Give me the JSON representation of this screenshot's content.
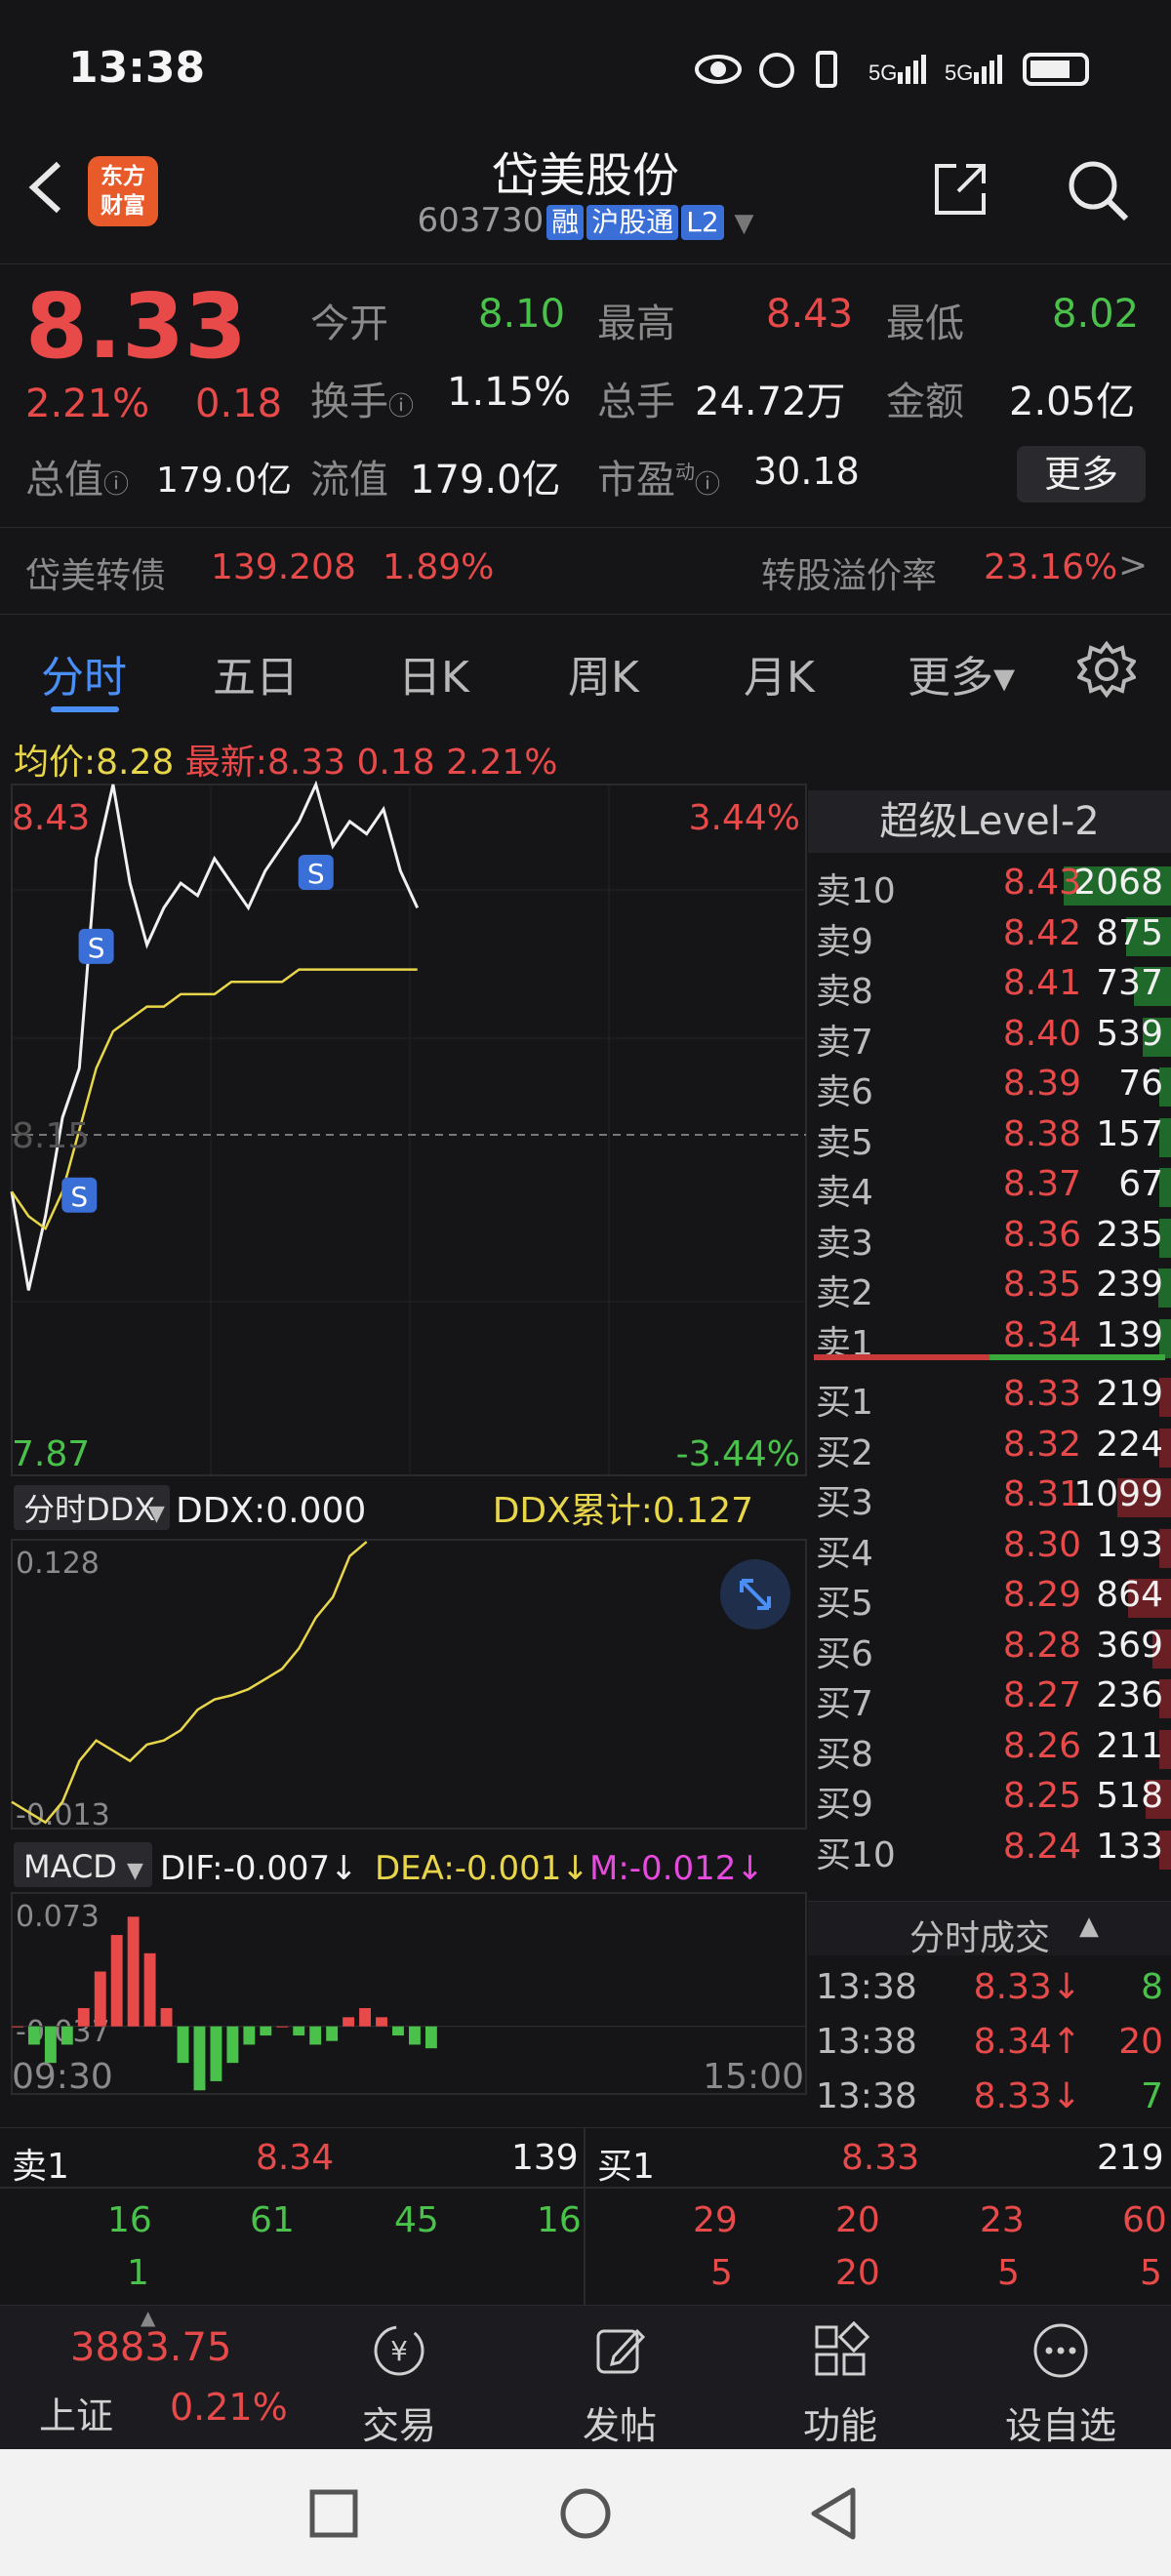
{
  "status": {
    "time": "13:38",
    "icons": "👁 ⏰ 📳 5G 5G 🔋"
  },
  "header": {
    "logo": "东方\n财富",
    "logo_line1": "东方",
    "logo_line2": "财富",
    "name": "岱美股份",
    "code": "603730",
    "tags": [
      "融",
      "沪股通",
      "L2"
    ]
  },
  "quote": {
    "price": "8.33",
    "change_pct": "2.21%",
    "change": "0.18",
    "open_label": "今开",
    "open": "8.10",
    "high_label": "最高",
    "high": "8.43",
    "low_label": "最低",
    "low": "8.02",
    "turnover_label": "换手",
    "turnover": "1.15%",
    "volume_label": "总手",
    "volume": "24.72万",
    "amount_label": "金额",
    "amount": "2.05亿",
    "mktcap_label": "总值",
    "mktcap": "179.0亿",
    "float_label": "流值",
    "float": "179.0亿",
    "pe_label": "市盈",
    "pe_sup": "动",
    "pe": "30.18",
    "more": "更多"
  },
  "convertible": {
    "name": "岱美转债",
    "price": "139.208",
    "pct": "1.89%",
    "premium_label": "转股溢价率",
    "premium": "23.16%",
    "arrow": ">"
  },
  "tabs": [
    "分时",
    "五日",
    "日K",
    "周K",
    "月K",
    "更多▾"
  ],
  "avg": {
    "label": "均价:",
    "value": "8.28",
    "latest_label": "最新:",
    "latest": "8.33",
    "chg": "0.18",
    "pct": "2.21%"
  },
  "chart_data": [
    {
      "type": "line",
      "title": "",
      "x_start": "09:30",
      "x_end": "15:00",
      "ylim": [
        7.87,
        8.43
      ],
      "y_top_label": "8.43",
      "y_bottom_label": "7.87",
      "y_mid_label": "8.15",
      "pct_top_label": "3.44%",
      "pct_bottom_label": "-3.44%",
      "series": [
        {
          "values": [
            8.1,
            8.02,
            8.08,
            8.16,
            8.2,
            8.37,
            8.43,
            8.35,
            8.3,
            8.33,
            8.35,
            8.34,
            8.37,
            8.35,
            8.33,
            8.36,
            8.38,
            8.4,
            8.43,
            8.38,
            8.4,
            8.39,
            8.41,
            8.36,
            8.33
          ]
        },
        {
          "values": [
            8.1,
            8.08,
            8.07,
            8.1,
            8.15,
            8.2,
            8.23,
            8.24,
            8.25,
            8.25,
            8.26,
            8.26,
            8.26,
            8.27,
            8.27,
            8.27,
            8.27,
            8.28,
            8.28,
            8.28,
            8.28,
            8.28,
            8.28,
            8.28,
            8.28
          ]
        }
      ],
      "markers": [
        "S",
        "S",
        "S"
      ]
    },
    {
      "type": "line",
      "title": "分时DDX",
      "ddx_label": "DDX:0.000",
      "ddx_cum_label": "DDX累计:0.127",
      "ylim": [
        -0.013,
        0.128
      ],
      "y_top_label": "0.128",
      "y_bottom_label": "-0.013",
      "series": [
        {
          "values": [
            0.0,
            -0.005,
            -0.01,
            0.0,
            0.02,
            0.03,
            0.025,
            0.02,
            0.028,
            0.03,
            0.035,
            0.045,
            0.05,
            0.052,
            0.055,
            0.06,
            0.065,
            0.075,
            0.09,
            0.1,
            0.12,
            0.127
          ]
        }
      ]
    },
    {
      "type": "bar",
      "title": "MACD",
      "dif_label": "DIF:-0.007↓",
      "dea_label": "DEA:-0.001↓",
      "m_label": "M:-0.012↓",
      "ylim": [
        -0.037,
        0.073
      ],
      "y_top_label": "0.073",
      "y_bottom_label": "-0.037",
      "values": [
        0.0,
        -0.01,
        -0.02,
        -0.01,
        0.01,
        0.03,
        0.05,
        0.06,
        0.04,
        0.01,
        -0.02,
        -0.035,
        -0.03,
        -0.02,
        -0.01,
        -0.005,
        0.0,
        -0.005,
        -0.01,
        -0.008,
        0.005,
        0.01,
        0.005,
        -0.005,
        -0.01,
        -0.012
      ]
    }
  ],
  "book": {
    "title": "超级Level-2",
    "sells": [
      {
        "label": "卖10",
        "price": "8.43",
        "vol": "2068",
        "frac": 1.0
      },
      {
        "label": "卖9",
        "price": "8.42",
        "vol": "875",
        "frac": 0.42
      },
      {
        "label": "卖8",
        "price": "8.41",
        "vol": "737",
        "frac": 0.35
      },
      {
        "label": "卖7",
        "price": "8.40",
        "vol": "539",
        "frac": 0.26
      },
      {
        "label": "卖6",
        "price": "8.39",
        "vol": "76",
        "frac": 0.04
      },
      {
        "label": "卖5",
        "price": "8.38",
        "vol": "157",
        "frac": 0.08
      },
      {
        "label": "卖4",
        "price": "8.37",
        "vol": "67",
        "frac": 0.03
      },
      {
        "label": "卖3",
        "price": "8.36",
        "vol": "235",
        "frac": 0.11
      },
      {
        "label": "卖2",
        "price": "8.35",
        "vol": "239",
        "frac": 0.12
      },
      {
        "label": "卖1",
        "price": "8.34",
        "vol": "139",
        "frac": 0.07
      }
    ],
    "buys": [
      {
        "label": "买1",
        "price": "8.33",
        "vol": "219",
        "frac": 0.1
      },
      {
        "label": "买2",
        "price": "8.32",
        "vol": "224",
        "frac": 0.1
      },
      {
        "label": "买3",
        "price": "8.31",
        "vol": "1099",
        "frac": 0.5
      },
      {
        "label": "买4",
        "price": "8.30",
        "vol": "193",
        "frac": 0.09
      },
      {
        "label": "买5",
        "price": "8.29",
        "vol": "864",
        "frac": 0.4
      },
      {
        "label": "买6",
        "price": "8.28",
        "vol": "369",
        "frac": 0.17
      },
      {
        "label": "买7",
        "price": "8.27",
        "vol": "236",
        "frac": 0.11
      },
      {
        "label": "买8",
        "price": "8.26",
        "vol": "211",
        "frac": 0.1
      },
      {
        "label": "买9",
        "price": "8.25",
        "vol": "518",
        "frac": 0.24
      },
      {
        "label": "买10",
        "price": "8.24",
        "vol": "133",
        "frac": 0.06
      }
    ],
    "ticks_title": "分时成交",
    "ticks": [
      {
        "time": "13:38",
        "price": "8.33↓",
        "vol": "8",
        "dir": "down"
      },
      {
        "time": "13:38",
        "price": "8.34↑",
        "vol": "20",
        "dir": "up"
      },
      {
        "time": "13:38",
        "price": "8.33↓",
        "vol": "7",
        "dir": "down"
      }
    ]
  },
  "quick": {
    "sell_label": "卖1",
    "sell_price": "8.34",
    "sell_vol": "139",
    "buy_label": "买1",
    "buy_price": "8.33",
    "buy_vol": "219",
    "sell_row1": [
      "16",
      "61",
      "45",
      "16"
    ],
    "sell_row2": [
      "1"
    ],
    "buy_row1": [
      "29",
      "20",
      "23",
      "60"
    ],
    "buy_row2": [
      "5",
      "20",
      "5",
      "5"
    ]
  },
  "nav": {
    "index_value": "3883.75",
    "index_name": "上证",
    "index_pct": "0.21%",
    "items": [
      "交易",
      "发帖",
      "功能",
      "设自选"
    ]
  },
  "colors": {
    "up": "#e84a4a",
    "down": "#49c14a",
    "accent": "#4a8ff5",
    "avg": "#e8d64a"
  }
}
